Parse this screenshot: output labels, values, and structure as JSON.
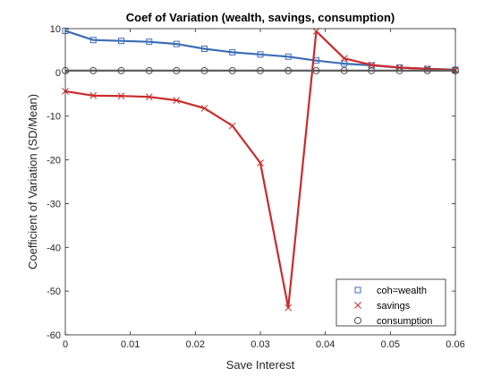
{
  "chart_data": {
    "type": "line",
    "title": "Coef of Variation (wealth, savings, consumption)",
    "xlabel": "Save Interest",
    "ylabel": "Coefficient of Variation (SD/Mean)",
    "xlim": [
      0,
      0.06
    ],
    "ylim": [
      -60,
      10
    ],
    "xticks": [
      0,
      0.01,
      0.02,
      0.03,
      0.04,
      0.05,
      0.06
    ],
    "xtick_labels": [
      "0",
      "0.01",
      "0.02",
      "0.03",
      "0.04",
      "0.05",
      "0.06"
    ],
    "yticks": [
      10,
      0,
      -10,
      -20,
      -30,
      -40,
      -50,
      -60
    ],
    "ytick_labels": [
      "10",
      "0",
      "-10",
      "-20",
      "-30",
      "-40",
      "-50",
      "-60"
    ],
    "grid": false,
    "legend_position": "bottom-right",
    "x": [
      0,
      0.0043,
      0.0086,
      0.0129,
      0.0171,
      0.0214,
      0.0257,
      0.03,
      0.0343,
      0.0386,
      0.0429,
      0.0471,
      0.0514,
      0.0557,
      0.06
    ],
    "series": [
      {
        "name": "coh=wealth",
        "marker": "square",
        "color": "#3d6db5",
        "values": [
          9.5,
          7.4,
          7.2,
          7.0,
          6.5,
          5.4,
          4.6,
          4.1,
          3.6,
          2.7,
          2.0,
          1.6,
          1.1,
          0.8,
          0.6
        ]
      },
      {
        "name": "savings",
        "marker": "x",
        "color": "#cc2a2a",
        "values": [
          -4.3,
          -5.3,
          -5.4,
          -5.6,
          -6.4,
          -8.2,
          -12.2,
          -20.7,
          -53.8,
          9.4,
          3.2,
          1.7,
          1.1,
          0.8,
          0.5
        ]
      },
      {
        "name": "consumption",
        "marker": "circle",
        "color": "#606060",
        "values": [
          0.4,
          0.4,
          0.4,
          0.4,
          0.4,
          0.4,
          0.4,
          0.4,
          0.4,
          0.4,
          0.4,
          0.4,
          0.4,
          0.4,
          0.4
        ]
      }
    ]
  }
}
